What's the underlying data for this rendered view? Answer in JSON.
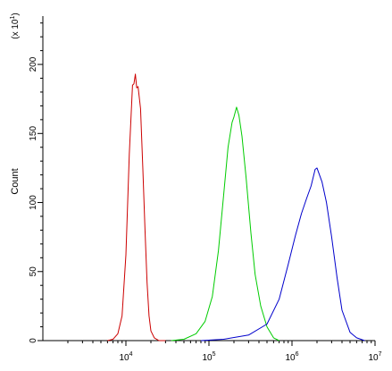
{
  "chart_data": {
    "type": "line",
    "x_scale": "log",
    "xlim": [
      1000,
      10000000
    ],
    "ylim": [
      0,
      235
    ],
    "grid": false,
    "legend": "none",
    "ylabel": "Count",
    "y_multiplier_label": "(x 10",
    "y_multiplier_exp": "1",
    "y_multiplier_close": ")",
    "y_ticks": [
      {
        "value": 0,
        "label": "0"
      },
      {
        "value": 50,
        "label": "50"
      },
      {
        "value": 100,
        "label": "100"
      },
      {
        "value": 150,
        "label": "150"
      },
      {
        "value": 200,
        "label": "200"
      }
    ],
    "x_ticks": [
      {
        "value": 10000,
        "base": "10",
        "exp": "4"
      },
      {
        "value": 100000,
        "base": "10",
        "exp": "5"
      },
      {
        "value": 1000000,
        "base": "10",
        "exp": "6"
      },
      {
        "value": 10000000,
        "base": "10",
        "exp": "7"
      }
    ],
    "series": [
      {
        "color": "#cc0000",
        "x": [
          6000,
          7000,
          8000,
          9000,
          10000,
          11000,
          12000,
          12500,
          13000,
          13500,
          14000,
          15000,
          16000,
          17000,
          18000,
          19000,
          20000,
          22000,
          25000,
          30000
        ],
        "y": [
          0,
          1,
          5,
          18,
          62,
          135,
          185,
          186,
          193,
          183,
          184,
          168,
          124,
          80,
          42,
          18,
          7,
          2,
          0,
          0
        ]
      },
      {
        "color": "#00cc00",
        "x": [
          35000,
          50000,
          70000,
          90000,
          110000,
          130000,
          150000,
          170000,
          190000,
          200000,
          215000,
          230000,
          250000,
          280000,
          320000,
          360000,
          420000,
          500000,
          600000,
          700000
        ],
        "y": [
          0,
          1,
          5,
          14,
          32,
          65,
          105,
          140,
          158,
          162,
          169,
          163,
          148,
          118,
          78,
          48,
          25,
          10,
          2,
          0
        ]
      },
      {
        "color": "#0000cc",
        "x": [
          80000,
          150000,
          300000,
          500000,
          700000,
          900000,
          1100000,
          1300000,
          1500000,
          1700000,
          1900000,
          2000000,
          2300000,
          2600000,
          3000000,
          3500000,
          4000000,
          5000000,
          6000000,
          7500000
        ],
        "y": [
          0,
          1,
          4,
          12,
          30,
          55,
          76,
          92,
          103,
          112,
          124,
          125,
          115,
          100,
          75,
          45,
          22,
          6,
          2,
          0
        ]
      }
    ]
  }
}
